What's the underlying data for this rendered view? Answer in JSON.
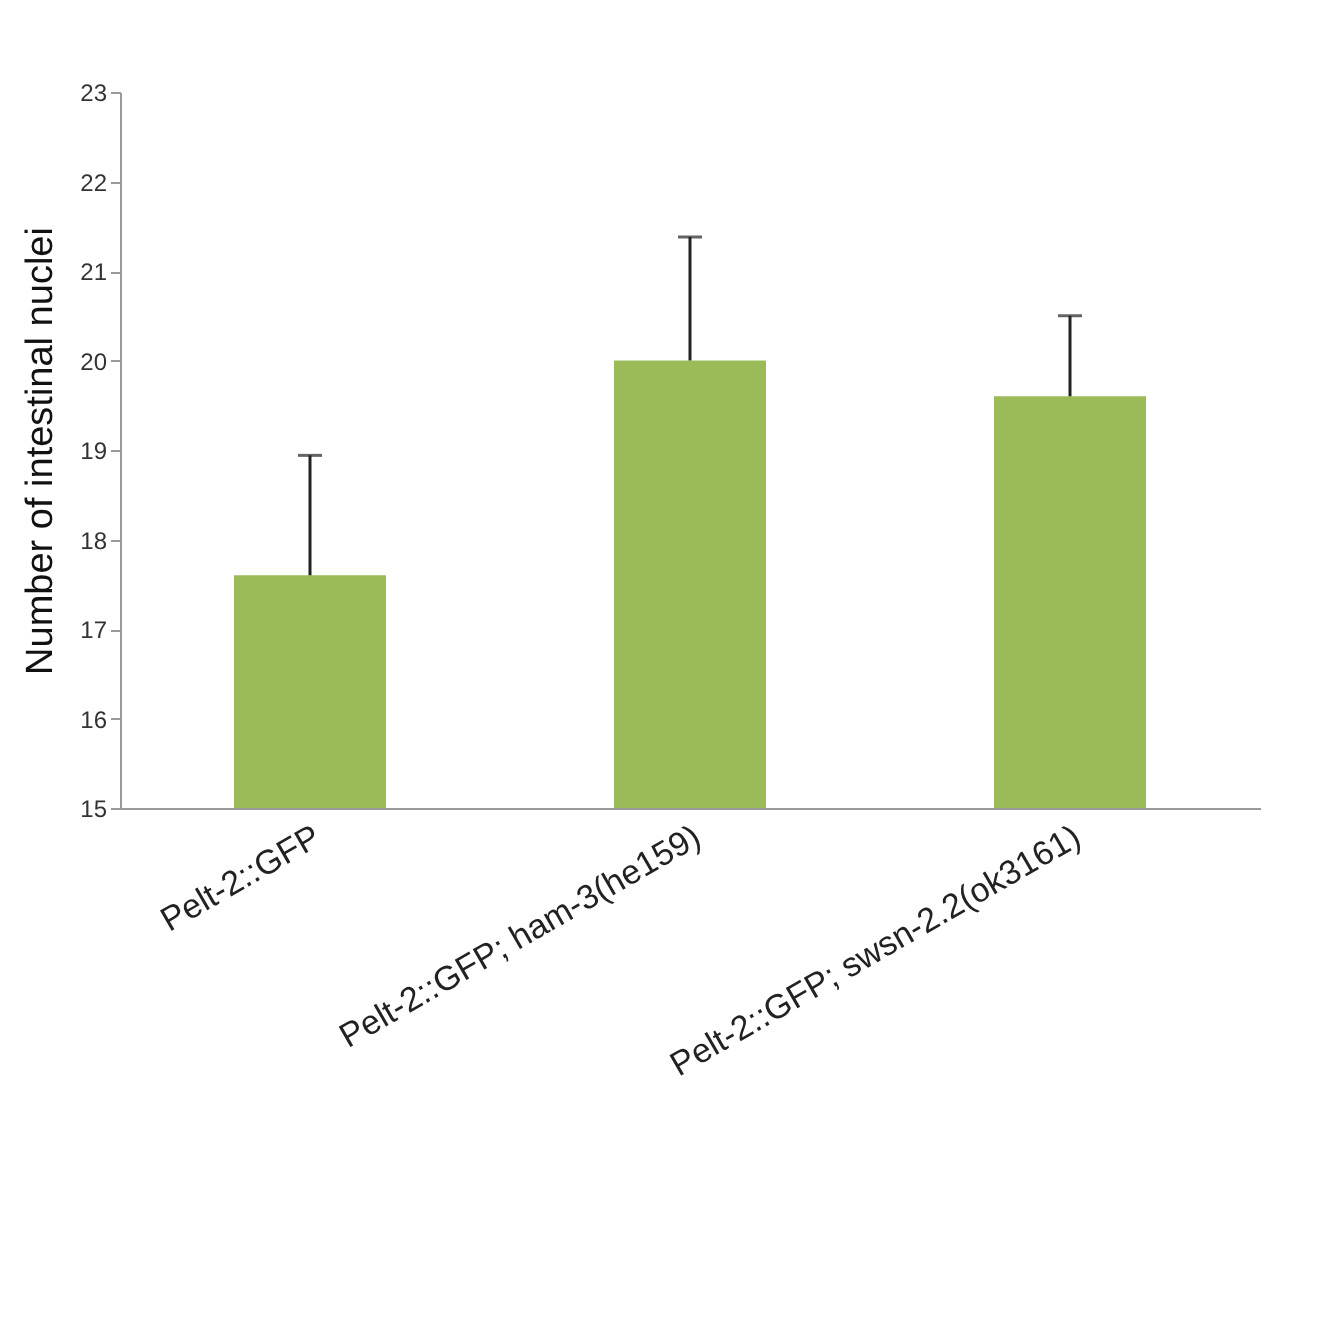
{
  "chart_data": {
    "type": "bar",
    "ylabel": "Number of intestinal nuclei",
    "categories": [
      "Pelt-2::GFP",
      "Pelt-2::GFP; ham-3(he159)",
      "Pelt-2::GFP; swsn-2.2(ok3161)"
    ],
    "values": [
      17.6,
      20.0,
      19.6
    ],
    "errors": [
      [
        17.6,
        18.94
      ],
      [
        20.0,
        21.38
      ],
      [
        19.6,
        20.5
      ]
    ],
    "color": "#9bbb59",
    "ylim": [
      15,
      23
    ],
    "yticks": [
      15,
      16,
      17,
      18,
      19,
      20,
      21,
      22,
      23
    ],
    "grid": false
  }
}
